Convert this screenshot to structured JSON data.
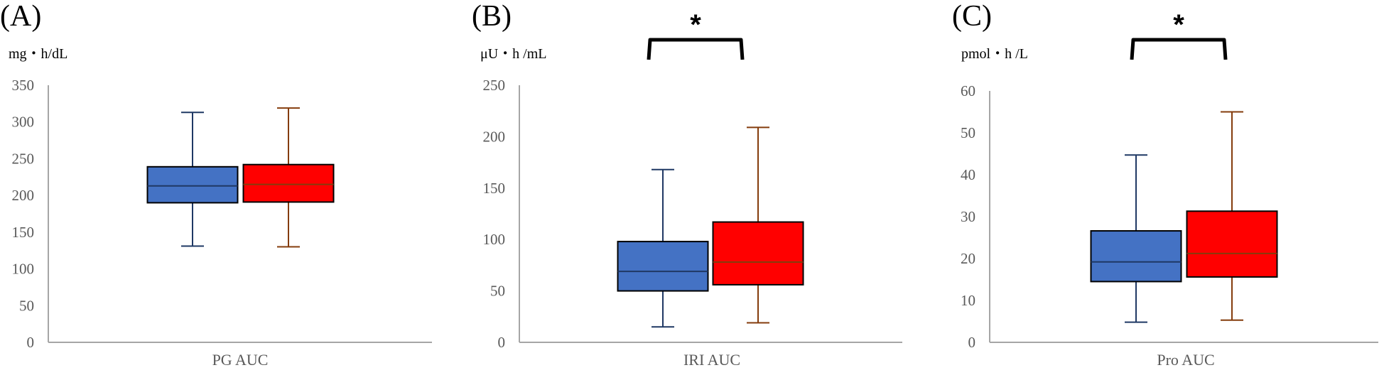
{
  "chart_data": [
    {
      "type": "box",
      "panel": "(A)",
      "ylabel": "mg・h/dL",
      "xlabel": "PG AUC",
      "ylim": [
        0,
        350
      ],
      "yticks": [
        0,
        50,
        100,
        150,
        200,
        250,
        300,
        350
      ],
      "grid": false,
      "significance": "",
      "series": [
        {
          "color": "#4472C4",
          "whisker_color": "#1F3864",
          "min": 131,
          "q1": 190,
          "median": 213,
          "q3": 239,
          "max": 313
        },
        {
          "color": "#FF0000",
          "whisker_color": "#843C0C",
          "min": 130,
          "q1": 191,
          "median": 215,
          "q3": 242,
          "max": 319
        }
      ]
    },
    {
      "type": "box",
      "panel": "(B)",
      "ylabel": "μU・h /mL",
      "xlabel": "IRI AUC",
      "ylim": [
        0,
        250
      ],
      "yticks": [
        0,
        50,
        100,
        150,
        200,
        250
      ],
      "grid": false,
      "significance": "*",
      "series": [
        {
          "color": "#4472C4",
          "whisker_color": "#1F3864",
          "min": 15,
          "q1": 50,
          "median": 69,
          "q3": 98,
          "max": 168
        },
        {
          "color": "#FF0000",
          "whisker_color": "#843C0C",
          "min": 19,
          "q1": 56,
          "median": 78,
          "q3": 117,
          "max": 209
        }
      ]
    },
    {
      "type": "box",
      "panel": "(C)",
      "ylabel": "pmol・h /L",
      "xlabel": "Pro AUC",
      "ylim": [
        0,
        60
      ],
      "yticks": [
        0,
        10,
        20,
        30,
        40,
        50,
        60
      ],
      "grid": false,
      "significance": "*",
      "series": [
        {
          "color": "#4472C4",
          "whisker_color": "#1F3864",
          "min": 4.8,
          "q1": 14.5,
          "median": 19.2,
          "q3": 26.6,
          "max": 44.7
        },
        {
          "color": "#FF0000",
          "whisker_color": "#843C0C",
          "min": 5.3,
          "q1": 15.6,
          "median": 21.2,
          "q3": 31.3,
          "max": 55.0
        }
      ]
    }
  ]
}
